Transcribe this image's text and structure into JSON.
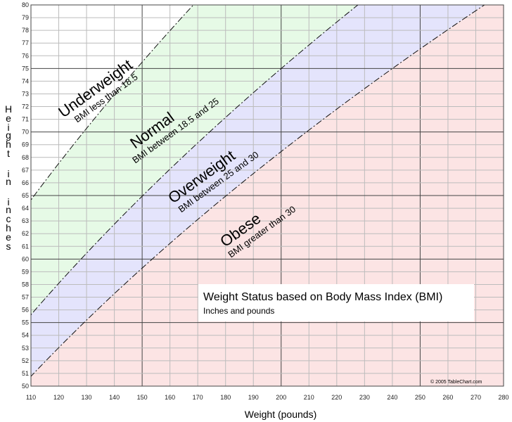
{
  "chart_data": {
    "type": "area",
    "title": "Weight Status based on Body Mass Index (BMI)",
    "subtitle": "Inches and pounds",
    "xlabel": "Weight (pounds)",
    "ylabel": "Height in inches",
    "xlim": [
      110,
      280
    ],
    "ylim": [
      50,
      80
    ],
    "x_ticks": [
      110,
      120,
      130,
      140,
      150,
      160,
      170,
      180,
      190,
      200,
      210,
      220,
      230,
      240,
      250,
      260,
      270,
      280
    ],
    "y_ticks": [
      50,
      51,
      52,
      53,
      54,
      55,
      56,
      57,
      58,
      59,
      60,
      61,
      62,
      63,
      64,
      65,
      66,
      67,
      68,
      69,
      70,
      71,
      72,
      73,
      74,
      75,
      76,
      77,
      78,
      79,
      80
    ],
    "grid": true,
    "boundaries": [
      {
        "bmi": 18.5,
        "style": "dash-dot"
      },
      {
        "bmi": 25,
        "style": "dash-dot"
      },
      {
        "bmi": 30,
        "style": "dash-dot"
      }
    ],
    "regions": [
      {
        "name": "Underweight",
        "description": "BMI less than 18.5",
        "color": "#ffffff"
      },
      {
        "name": "Normal",
        "description": "BMI between 18.5 and 25",
        "color": "#e6fae6"
      },
      {
        "name": "Overweight",
        "description": "BMI between 25 and 30",
        "color": "#e4e4fc"
      },
      {
        "name": "Obese",
        "description": "BMI greater than 30",
        "color": "#fce4e4"
      }
    ],
    "copyright": "© 2005 TableChart.com"
  }
}
